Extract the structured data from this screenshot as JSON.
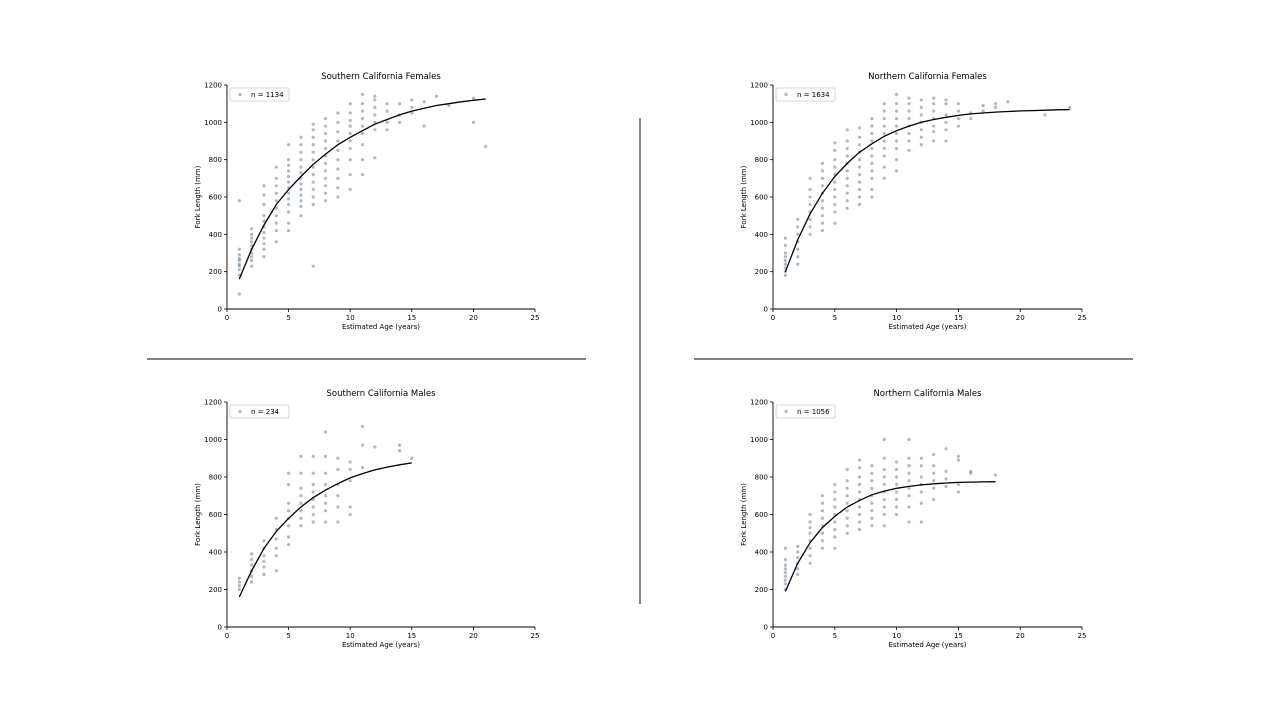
{
  "colors": {
    "point": "#34506b",
    "curve": "#000000",
    "divider": "#333333",
    "axis": "#000000"
  },
  "chart_data": [
    {
      "type": "scatter",
      "title": "Southern California Females",
      "xlabel": "Estimated Age (years)",
      "ylabel": "Fork Length (mm)",
      "xlim": [
        0,
        25
      ],
      "ylim": [
        0,
        1200
      ],
      "xticks": [
        0,
        5,
        10,
        15,
        20,
        25
      ],
      "yticks": [
        0,
        200,
        400,
        600,
        800,
        1000,
        1200
      ],
      "legend": {
        "label": "n = 1134",
        "placement": "top-left"
      },
      "points": [
        {
          "x": 1,
          "y": [
            80,
            180,
            210,
            230,
            240,
            260,
            270,
            290,
            320,
            580
          ]
        },
        {
          "x": 2,
          "y": [
            230,
            260,
            280,
            300,
            320,
            340,
            360,
            380,
            400,
            430
          ]
        },
        {
          "x": 3,
          "y": [
            280,
            320,
            350,
            380,
            410,
            440,
            470,
            500,
            560,
            610,
            660
          ]
        },
        {
          "x": 4,
          "y": [
            360,
            420,
            460,
            500,
            540,
            580,
            620,
            660,
            700,
            760
          ]
        },
        {
          "x": 5,
          "y": [
            420,
            460,
            520,
            560,
            590,
            620,
            650,
            680,
            710,
            740,
            770,
            800,
            880
          ]
        },
        {
          "x": 6,
          "y": [
            500,
            550,
            580,
            610,
            640,
            670,
            700,
            730,
            760,
            800,
            840,
            880,
            920
          ]
        },
        {
          "x": 7,
          "y": [
            230,
            560,
            600,
            640,
            680,
            720,
            760,
            800,
            840,
            880,
            920,
            960,
            990
          ]
        },
        {
          "x": 8,
          "y": [
            580,
            620,
            660,
            700,
            740,
            780,
            820,
            860,
            900,
            940,
            980,
            1020
          ]
        },
        {
          "x": 9,
          "y": [
            600,
            650,
            700,
            750,
            800,
            850,
            900,
            950,
            1000,
            1050
          ]
        },
        {
          "x": 10,
          "y": [
            640,
            720,
            800,
            860,
            900,
            940,
            980,
            1010,
            1050,
            1100
          ]
        },
        {
          "x": 11,
          "y": [
            720,
            800,
            880,
            940,
            980,
            1020,
            1060,
            1100,
            1150
          ]
        },
        {
          "x": 12,
          "y": [
            810,
            960,
            1000,
            1040,
            1080,
            1120,
            1140
          ]
        },
        {
          "x": 13,
          "y": [
            960,
            1000,
            1060,
            1100
          ]
        },
        {
          "x": 14,
          "y": [
            1000,
            1040,
            1100
          ]
        },
        {
          "x": 15,
          "y": [
            1050,
            1080,
            1120
          ]
        },
        {
          "x": 16,
          "y": [
            980,
            1110
          ]
        },
        {
          "x": 17,
          "y": [
            1140
          ]
        },
        {
          "x": 18,
          "y": [
            1090
          ]
        },
        {
          "x": 20,
          "y": [
            1000,
            1130
          ]
        },
        {
          "x": 21,
          "y": [
            870
          ]
        }
      ],
      "curve": {
        "x": [
          1,
          2,
          3,
          4,
          5,
          6,
          7,
          8,
          9,
          10,
          11,
          12,
          13,
          14,
          15,
          16,
          17,
          18,
          19,
          20,
          21
        ],
        "y": [
          160,
          320,
          450,
          560,
          640,
          710,
          775,
          830,
          880,
          920,
          955,
          990,
          1015,
          1040,
          1060,
          1075,
          1090,
          1100,
          1110,
          1118,
          1125
        ]
      }
    },
    {
      "type": "scatter",
      "title": "Northern California Females",
      "xlabel": "Estimated Age (years)",
      "ylabel": "Fork Length (mm)",
      "xlim": [
        0,
        25
      ],
      "ylim": [
        0,
        1200
      ],
      "xticks": [
        0,
        5,
        10,
        15,
        20,
        25
      ],
      "yticks": [
        0,
        200,
        400,
        600,
        800,
        1000,
        1200
      ],
      "legend": {
        "label": "n = 1634",
        "placement": "top-left"
      },
      "points": [
        {
          "x": 1,
          "y": [
            180,
            200,
            220,
            240,
            260,
            280,
            300,
            340,
            380
          ]
        },
        {
          "x": 2,
          "y": [
            240,
            280,
            320,
            360,
            400,
            440,
            480
          ]
        },
        {
          "x": 3,
          "y": [
            400,
            440,
            480,
            520,
            560,
            600,
            640,
            700
          ]
        },
        {
          "x": 4,
          "y": [
            420,
            460,
            500,
            540,
            580,
            620,
            660,
            700,
            740,
            780
          ]
        },
        {
          "x": 5,
          "y": [
            460,
            520,
            560,
            600,
            640,
            680,
            720,
            760,
            800,
            850,
            890
          ]
        },
        {
          "x": 6,
          "y": [
            540,
            580,
            620,
            660,
            700,
            740,
            780,
            820,
            860,
            900,
            960
          ]
        },
        {
          "x": 7,
          "y": [
            560,
            600,
            640,
            680,
            720,
            760,
            800,
            840,
            880,
            920,
            970
          ]
        },
        {
          "x": 8,
          "y": [
            600,
            640,
            700,
            740,
            780,
            820,
            860,
            900,
            940,
            980,
            1020
          ]
        },
        {
          "x": 9,
          "y": [
            700,
            760,
            820,
            860,
            900,
            940,
            980,
            1020,
            1060,
            1100
          ]
        },
        {
          "x": 10,
          "y": [
            740,
            800,
            860,
            900,
            940,
            980,
            1020,
            1060,
            1100,
            1150
          ]
        },
        {
          "x": 11,
          "y": [
            850,
            900,
            940,
            980,
            1020,
            1060,
            1100,
            1130
          ]
        },
        {
          "x": 12,
          "y": [
            880,
            920,
            960,
            1000,
            1040,
            1080,
            1120
          ]
        },
        {
          "x": 13,
          "y": [
            900,
            950,
            980,
            1020,
            1060,
            1100,
            1130
          ]
        },
        {
          "x": 14,
          "y": [
            900,
            960,
            1000,
            1040,
            1100,
            1120
          ]
        },
        {
          "x": 15,
          "y": [
            980,
            1020,
            1060,
            1100
          ]
        },
        {
          "x": 16,
          "y": [
            1020,
            1050
          ]
        },
        {
          "x": 17,
          "y": [
            1060,
            1090
          ]
        },
        {
          "x": 18,
          "y": [
            1080,
            1100
          ]
        },
        {
          "x": 19,
          "y": [
            1110
          ]
        },
        {
          "x": 22,
          "y": [
            1040
          ]
        },
        {
          "x": 24,
          "y": [
            1080
          ]
        }
      ],
      "curve": {
        "x": [
          1,
          2,
          3,
          4,
          5,
          6,
          7,
          8,
          9,
          10,
          11,
          12,
          13,
          14,
          15,
          16,
          17,
          18,
          19,
          20,
          21,
          22,
          23,
          24
        ],
        "y": [
          200,
          370,
          510,
          620,
          710,
          780,
          840,
          885,
          925,
          955,
          980,
          1000,
          1015,
          1027,
          1037,
          1045,
          1050,
          1055,
          1058,
          1061,
          1063,
          1065,
          1067,
          1068
        ]
      }
    },
    {
      "type": "scatter",
      "title": "Southern California Males",
      "xlabel": "Estimated Age (years)",
      "ylabel": "Fork Length (mm)",
      "xlim": [
        0,
        25
      ],
      "ylim": [
        0,
        1200
      ],
      "xticks": [
        0,
        5,
        10,
        15,
        20,
        25
      ],
      "yticks": [
        0,
        200,
        400,
        600,
        800,
        1000,
        1200
      ],
      "legend": {
        "label": "n = 234",
        "placement": "top-left"
      },
      "points": [
        {
          "x": 1,
          "y": [
            200,
            220,
            240,
            260
          ]
        },
        {
          "x": 2,
          "y": [
            240,
            270,
            300,
            330,
            360,
            390
          ]
        },
        {
          "x": 3,
          "y": [
            280,
            320,
            350,
            380,
            420,
            460
          ]
        },
        {
          "x": 4,
          "y": [
            300,
            380,
            420,
            470,
            520,
            580
          ]
        },
        {
          "x": 5,
          "y": [
            440,
            480,
            540,
            580,
            620,
            660,
            760,
            820
          ]
        },
        {
          "x": 6,
          "y": [
            540,
            580,
            620,
            660,
            700,
            740,
            820,
            910
          ]
        },
        {
          "x": 7,
          "y": [
            560,
            600,
            640,
            680,
            720,
            760,
            820,
            910
          ]
        },
        {
          "x": 8,
          "y": [
            560,
            620,
            660,
            700,
            760,
            820,
            910,
            1040
          ]
        },
        {
          "x": 9,
          "y": [
            560,
            640,
            700,
            760,
            840,
            900
          ]
        },
        {
          "x": 10,
          "y": [
            600,
            640,
            780,
            840,
            880
          ]
        },
        {
          "x": 11,
          "y": [
            850,
            970,
            1070
          ]
        },
        {
          "x": 12,
          "y": [
            960
          ]
        },
        {
          "x": 14,
          "y": [
            940,
            970
          ]
        },
        {
          "x": 15,
          "y": [
            900
          ]
        }
      ],
      "curve": {
        "x": [
          1,
          2,
          3,
          4,
          5,
          6,
          7,
          8,
          9,
          10,
          11,
          12,
          13,
          14,
          15
        ],
        "y": [
          160,
          300,
          420,
          510,
          580,
          640,
          690,
          730,
          765,
          795,
          818,
          838,
          853,
          865,
          875
        ]
      }
    },
    {
      "type": "scatter",
      "title": "Northern California Males",
      "xlabel": "Estimated Age (years)",
      "ylabel": "Fork Length (mm)",
      "xlim": [
        0,
        25
      ],
      "ylim": [
        0,
        1200
      ],
      "xticks": [
        0,
        5,
        10,
        15,
        20,
        25
      ],
      "yticks": [
        0,
        200,
        400,
        600,
        800,
        1000,
        1200
      ],
      "legend": {
        "label": "n = 1056",
        "placement": "top-left"
      },
      "points": [
        {
          "x": 1,
          "y": [
            200,
            230,
            250,
            270,
            290,
            310,
            330,
            360,
            420
          ]
        },
        {
          "x": 2,
          "y": [
            280,
            310,
            340,
            370,
            400,
            430
          ]
        },
        {
          "x": 3,
          "y": [
            340,
            380,
            420,
            460,
            500,
            530,
            560,
            600
          ]
        },
        {
          "x": 4,
          "y": [
            420,
            460,
            500,
            540,
            580,
            620,
            660,
            700
          ]
        },
        {
          "x": 5,
          "y": [
            420,
            480,
            520,
            560,
            600,
            640,
            680,
            720,
            760
          ]
        },
        {
          "x": 6,
          "y": [
            500,
            540,
            580,
            620,
            660,
            700,
            740,
            780,
            840
          ]
        },
        {
          "x": 7,
          "y": [
            520,
            560,
            600,
            640,
            680,
            720,
            760,
            800,
            850,
            890
          ]
        },
        {
          "x": 8,
          "y": [
            540,
            580,
            620,
            660,
            700,
            740,
            780,
            820,
            860
          ]
        },
        {
          "x": 9,
          "y": [
            540,
            600,
            640,
            680,
            720,
            760,
            800,
            840,
            900,
            1000
          ]
        },
        {
          "x": 10,
          "y": [
            600,
            640,
            680,
            720,
            760,
            800,
            840,
            880
          ]
        },
        {
          "x": 11,
          "y": [
            560,
            640,
            700,
            740,
            780,
            820,
            860,
            900,
            1000
          ]
        },
        {
          "x": 12,
          "y": [
            560,
            660,
            720,
            760,
            800,
            860,
            900
          ]
        },
        {
          "x": 13,
          "y": [
            680,
            740,
            780,
            820,
            860,
            920
          ]
        },
        {
          "x": 14,
          "y": [
            750,
            790,
            830,
            950
          ]
        },
        {
          "x": 15,
          "y": [
            720,
            760,
            890,
            910
          ]
        },
        {
          "x": 16,
          "y": [
            820,
            830
          ]
        },
        {
          "x": 18,
          "y": [
            810
          ]
        }
      ],
      "curve": {
        "x": [
          1,
          2,
          3,
          4,
          5,
          6,
          7,
          8,
          9,
          10,
          11,
          12,
          13,
          14,
          15,
          16,
          17,
          18
        ],
        "y": [
          190,
          340,
          450,
          530,
          590,
          640,
          675,
          705,
          725,
          740,
          750,
          758,
          764,
          768,
          771,
          773,
          774,
          775
        ]
      }
    }
  ]
}
